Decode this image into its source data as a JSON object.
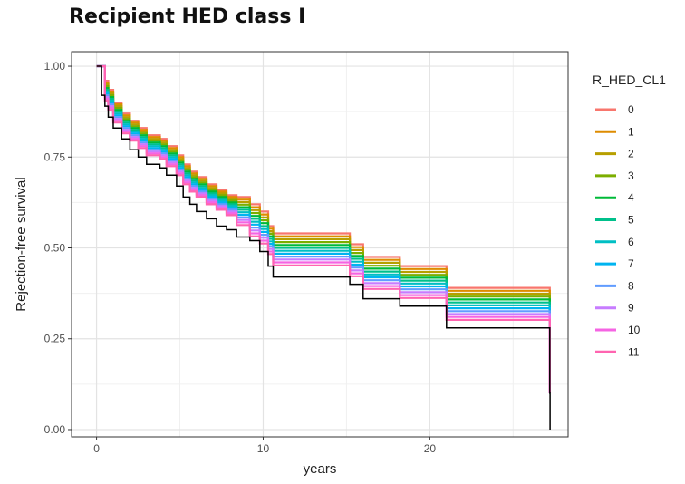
{
  "page": {
    "title": "Recipient HED class I"
  },
  "chart_data": {
    "type": "line",
    "step": true,
    "title": "",
    "xlabel": "years",
    "ylabel": "Rejection-free survival",
    "xlim": [
      -1.5,
      28.3
    ],
    "ylim": [
      -0.02,
      1.04
    ],
    "xticks": [
      0,
      10,
      20
    ],
    "yticks": [
      0.0,
      0.25,
      0.5,
      0.75,
      1.0
    ],
    "xtick_labels": [
      "0",
      "10",
      "20"
    ],
    "ytick_labels": [
      "0.00",
      "0.25",
      "0.50",
      "0.75",
      "1.00"
    ],
    "grid": true,
    "legend": {
      "title": "R_HED_CL1",
      "placement": "right"
    },
    "x_steps": [
      0,
      0.5,
      0.7,
      1,
      1.5,
      2,
      2.5,
      3,
      3.8,
      4.2,
      4.8,
      5.2,
      5.6,
      6,
      6.6,
      7.2,
      7.8,
      8.4,
      9.2,
      9.8,
      10.3,
      10.6,
      15.2,
      16,
      18.2,
      21,
      27.2
    ],
    "overall_x": [
      0,
      0.3,
      0.5,
      0.7,
      1,
      1.5,
      2,
      2.5,
      3,
      3.8,
      4.2,
      4.8,
      5.2,
      5.6,
      6,
      6.6,
      7.2,
      7.8,
      8.4,
      9.2,
      9.8,
      10.3,
      10.6,
      15.2,
      16,
      18.2,
      21,
      27.2,
      27.22
    ],
    "overall_y": [
      1.0,
      0.92,
      0.89,
      0.86,
      0.83,
      0.8,
      0.77,
      0.75,
      0.73,
      0.72,
      0.7,
      0.67,
      0.64,
      0.62,
      0.6,
      0.58,
      0.56,
      0.55,
      0.53,
      0.52,
      0.49,
      0.45,
      0.42,
      0.4,
      0.36,
      0.34,
      0.28,
      0.1,
      0.0
    ],
    "series": [
      {
        "name": "0",
        "color": "#F8766D",
        "y": [
          1.0,
          0.96,
          0.935,
          0.9,
          0.87,
          0.85,
          0.83,
          0.81,
          0.8,
          0.78,
          0.755,
          0.73,
          0.71,
          0.695,
          0.675,
          0.66,
          0.645,
          0.64,
          0.62,
          0.6,
          0.56,
          0.54,
          0.51,
          0.475,
          0.45,
          0.39,
          0.1
        ]
      },
      {
        "name": "1",
        "color": "#DE8C00",
        "y": [
          1.0,
          0.955,
          0.93,
          0.895,
          0.865,
          0.845,
          0.825,
          0.805,
          0.795,
          0.775,
          0.75,
          0.725,
          0.705,
          0.69,
          0.67,
          0.655,
          0.64,
          0.633,
          0.612,
          0.592,
          0.553,
          0.532,
          0.502,
          0.467,
          0.442,
          0.382,
          0.1
        ]
      },
      {
        "name": "2",
        "color": "#B79F00",
        "y": [
          1.0,
          0.95,
          0.925,
          0.89,
          0.86,
          0.84,
          0.82,
          0.8,
          0.79,
          0.77,
          0.745,
          0.72,
          0.7,
          0.685,
          0.665,
          0.65,
          0.635,
          0.626,
          0.604,
          0.584,
          0.546,
          0.524,
          0.494,
          0.459,
          0.434,
          0.374,
          0.1
        ]
      },
      {
        "name": "3",
        "color": "#7CAE00",
        "y": [
          1.0,
          0.945,
          0.92,
          0.885,
          0.855,
          0.835,
          0.815,
          0.795,
          0.785,
          0.765,
          0.74,
          0.715,
          0.695,
          0.68,
          0.66,
          0.645,
          0.63,
          0.619,
          0.596,
          0.576,
          0.539,
          0.516,
          0.486,
          0.451,
          0.426,
          0.366,
          0.1
        ]
      },
      {
        "name": "4",
        "color": "#00BA38",
        "y": [
          1.0,
          0.94,
          0.915,
          0.88,
          0.85,
          0.83,
          0.81,
          0.79,
          0.78,
          0.76,
          0.735,
          0.71,
          0.69,
          0.675,
          0.655,
          0.64,
          0.625,
          0.612,
          0.588,
          0.568,
          0.532,
          0.508,
          0.478,
          0.443,
          0.418,
          0.358,
          0.1
        ]
      },
      {
        "name": "5",
        "color": "#00C08B",
        "y": [
          1.0,
          0.935,
          0.91,
          0.875,
          0.845,
          0.825,
          0.805,
          0.785,
          0.775,
          0.755,
          0.73,
          0.705,
          0.685,
          0.67,
          0.65,
          0.635,
          0.62,
          0.605,
          0.58,
          0.56,
          0.525,
          0.5,
          0.47,
          0.435,
          0.41,
          0.35,
          0.1
        ]
      },
      {
        "name": "6",
        "color": "#00BFC4",
        "y": [
          1.0,
          0.93,
          0.905,
          0.87,
          0.84,
          0.82,
          0.8,
          0.78,
          0.77,
          0.75,
          0.725,
          0.7,
          0.68,
          0.665,
          0.645,
          0.63,
          0.615,
          0.598,
          0.572,
          0.552,
          0.518,
          0.492,
          0.462,
          0.427,
          0.402,
          0.342,
          0.1
        ]
      },
      {
        "name": "7",
        "color": "#00B4F0",
        "y": [
          1.0,
          0.925,
          0.9,
          0.865,
          0.835,
          0.815,
          0.795,
          0.775,
          0.765,
          0.745,
          0.72,
          0.695,
          0.675,
          0.66,
          0.64,
          0.625,
          0.61,
          0.591,
          0.564,
          0.544,
          0.511,
          0.484,
          0.454,
          0.419,
          0.394,
          0.334,
          0.1
        ]
      },
      {
        "name": "8",
        "color": "#619CFF",
        "y": [
          1.0,
          0.92,
          0.895,
          0.86,
          0.83,
          0.81,
          0.79,
          0.77,
          0.76,
          0.74,
          0.715,
          0.69,
          0.67,
          0.655,
          0.635,
          0.62,
          0.605,
          0.584,
          0.556,
          0.536,
          0.504,
          0.476,
          0.446,
          0.411,
          0.386,
          0.326,
          0.1
        ]
      },
      {
        "name": "9",
        "color": "#C77CFF",
        "y": [
          1.0,
          0.915,
          0.89,
          0.855,
          0.825,
          0.805,
          0.785,
          0.765,
          0.755,
          0.735,
          0.71,
          0.685,
          0.665,
          0.65,
          0.63,
          0.615,
          0.6,
          0.577,
          0.548,
          0.528,
          0.497,
          0.468,
          0.438,
          0.403,
          0.378,
          0.318,
          0.1
        ]
      },
      {
        "name": "10",
        "color": "#F564E3",
        "y": [
          1.0,
          0.91,
          0.885,
          0.85,
          0.82,
          0.8,
          0.78,
          0.76,
          0.75,
          0.73,
          0.705,
          0.68,
          0.66,
          0.645,
          0.625,
          0.61,
          0.595,
          0.57,
          0.54,
          0.52,
          0.49,
          0.46,
          0.43,
          0.395,
          0.37,
          0.31,
          0.1
        ]
      },
      {
        "name": "11",
        "color": "#FF64B0",
        "y": [
          1.0,
          0.905,
          0.88,
          0.845,
          0.815,
          0.795,
          0.775,
          0.755,
          0.745,
          0.725,
          0.7,
          0.675,
          0.655,
          0.64,
          0.62,
          0.605,
          0.59,
          0.563,
          0.532,
          0.512,
          0.483,
          0.452,
          0.422,
          0.387,
          0.362,
          0.302,
          0.1
        ]
      }
    ]
  }
}
